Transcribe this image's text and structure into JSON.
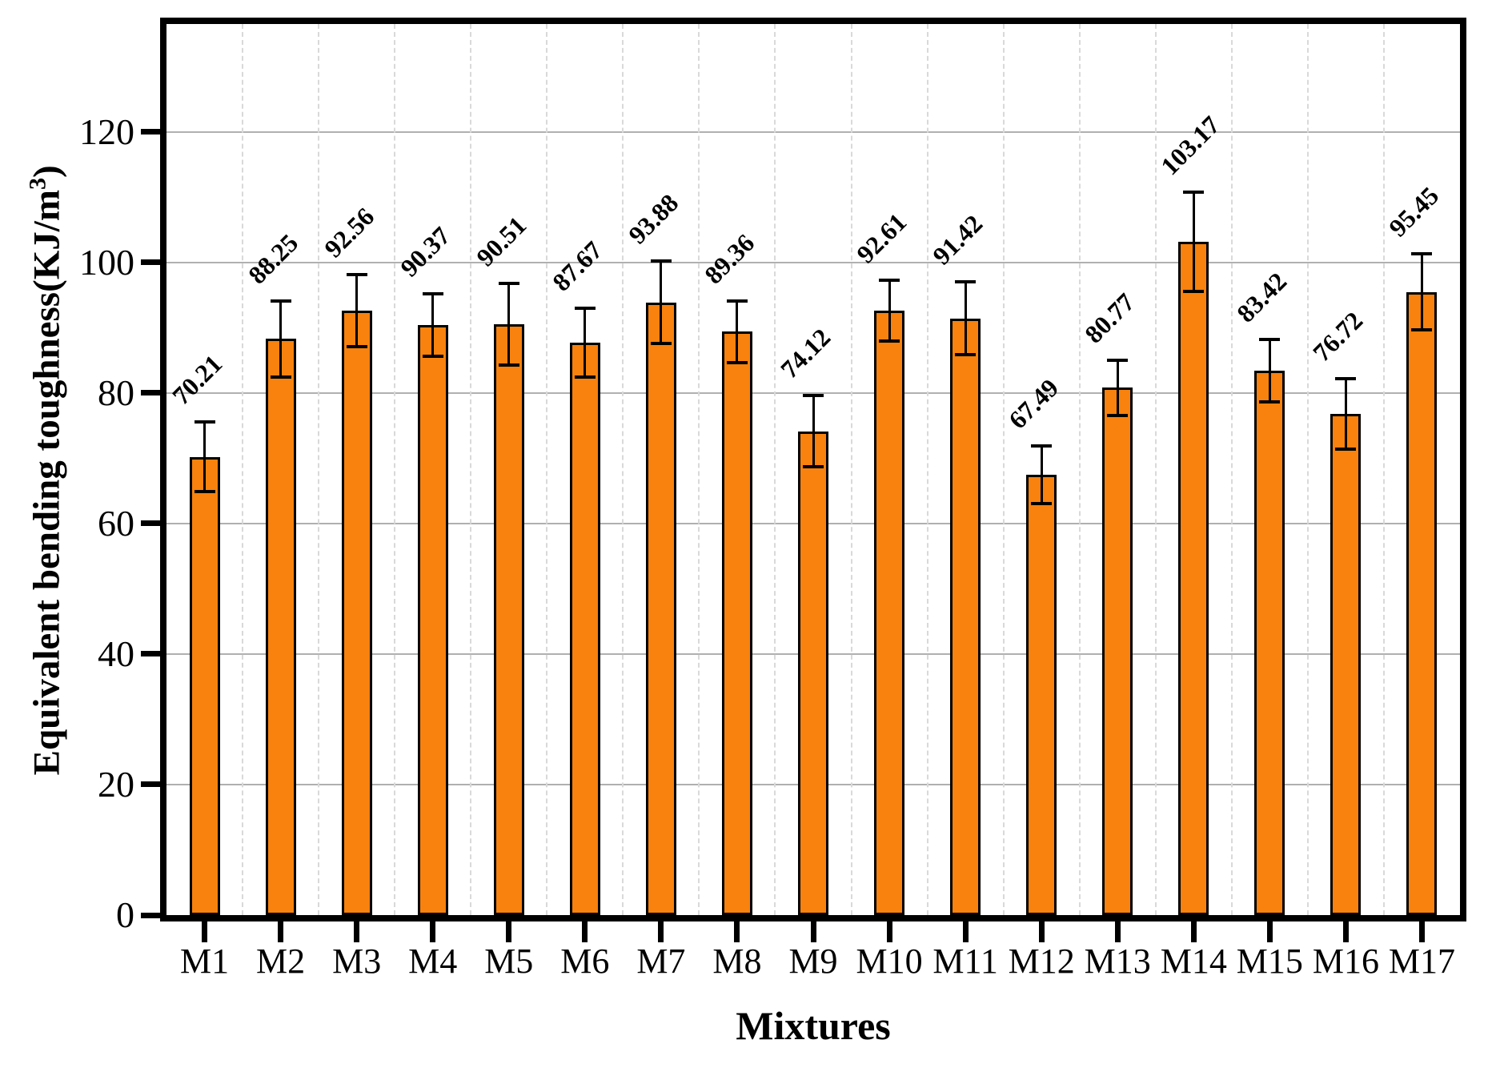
{
  "chart_data": {
    "type": "bar",
    "categories": [
      "M1",
      "M2",
      "M3",
      "M4",
      "M5",
      "M6",
      "M7",
      "M8",
      "M9",
      "M10",
      "M11",
      "M12",
      "M13",
      "M14",
      "M15",
      "M16",
      "M17"
    ],
    "values": [
      70.21,
      88.25,
      92.56,
      90.37,
      90.51,
      87.67,
      93.88,
      89.36,
      74.12,
      92.61,
      91.42,
      67.49,
      80.77,
      103.17,
      83.42,
      76.72,
      95.45
    ],
    "errors": [
      5.3,
      5.8,
      5.5,
      4.8,
      6.2,
      5.3,
      6.3,
      4.7,
      5.5,
      4.7,
      5.6,
      4.4,
      4.2,
      7.6,
      4.8,
      5.4,
      5.8
    ],
    "bar_labels": [
      "70.21",
      "88.25",
      "92.56",
      "90.37",
      "90.51",
      "87.67",
      "93.88",
      "89.36",
      "74.12",
      "92.61",
      "91.42",
      "67.49",
      "80.77",
      "103.17",
      "83.42",
      "76.72",
      "95.45"
    ],
    "title": "",
    "xlabel": "Mixtures",
    "ylabel": "Equivalent bending toughness(KJ/m3)",
    "ylabel_parts": {
      "base": "Equivalent bending toughness(KJ/m",
      "sup": "3",
      "close": ")"
    },
    "yticks": [
      0,
      20,
      40,
      60,
      80,
      100,
      120
    ],
    "ylim": [
      0,
      136.5
    ],
    "grid": "horizontal solid, vertical dashed at category boundaries",
    "legend_position": "none",
    "colors": {
      "bar_fill": "#F8820D",
      "bar_edge": "#000000",
      "error_bar": "#000000",
      "h_gridline": "#b0b0b0",
      "v_gridline": "#d9d9d9",
      "axis": "#000000"
    }
  }
}
